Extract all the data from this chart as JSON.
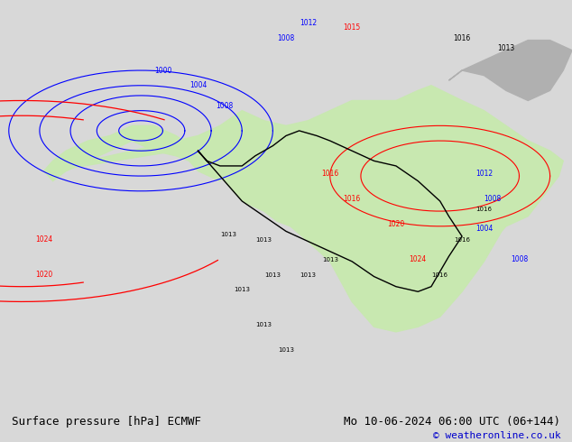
{
  "title_left": "Surface pressure [hPa] ECMWF",
  "title_right": "Mo 10-06-2024 06:00 UTC (06+144)",
  "copyright": "© weatheronline.co.uk",
  "bg_color": "#d8d8d8",
  "land_color": "#c8e8b0",
  "ocean_color": "#d8d8d8",
  "fig_width": 6.34,
  "fig_height": 4.9,
  "dpi": 100,
  "bottom_bar_color": "#e8e8e8",
  "title_fontsize": 9,
  "copyright_fontsize": 8,
  "copyright_color": "#0000cc"
}
